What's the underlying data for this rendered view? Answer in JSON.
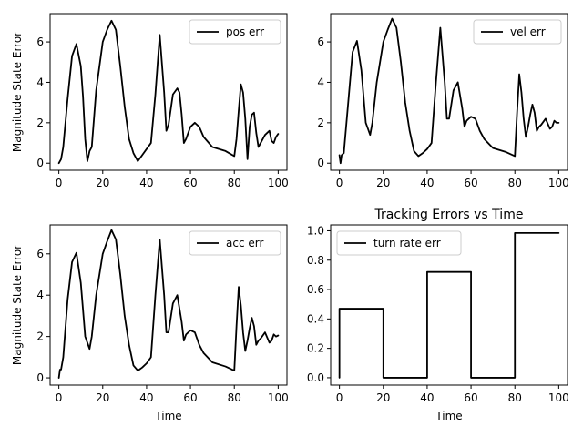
{
  "chart_data": [
    {
      "type": "line",
      "ylabel": "Magnitude State Error",
      "xlabel": "",
      "title": "",
      "xlim": [
        -4,
        104
      ],
      "ylim": [
        -0.35,
        7.4
      ],
      "xticks": [
        0,
        20,
        40,
        60,
        80,
        100
      ],
      "yticks": [
        0,
        2,
        4,
        6
      ],
      "legend": "top-right",
      "series": [
        {
          "name": "pos err",
          "color": "#000000",
          "x": [
            0,
            1,
            2,
            4,
            6,
            8,
            10,
            11,
            12,
            13,
            14,
            15,
            17,
            20,
            22,
            24,
            26,
            28,
            30,
            32,
            34,
            36,
            38,
            40,
            42,
            44,
            46,
            48,
            49,
            50,
            52,
            54,
            55,
            56,
            57,
            58,
            60,
            62,
            64,
            66,
            70,
            76,
            80,
            81,
            82,
            83,
            84,
            85,
            86,
            87,
            88,
            89,
            90,
            91,
            92,
            94,
            96,
            97,
            98,
            99,
            100
          ],
          "y": [
            0,
            0.2,
            0.8,
            3.2,
            5.3,
            5.9,
            4.8,
            3.3,
            1.2,
            0.1,
            0.6,
            0.8,
            3.6,
            6,
            6.6,
            7.05,
            6.6,
            4.8,
            2.8,
            1.2,
            0.5,
            0.1,
            0.4,
            0.7,
            1,
            3.4,
            6.35,
            3.5,
            1.6,
            1.9,
            3.4,
            3.7,
            3.5,
            2.4,
            1,
            1.2,
            1.8,
            2,
            1.8,
            1.3,
            0.8,
            0.6,
            0.35,
            1.2,
            2.6,
            3.9,
            3.5,
            2.2,
            0.2,
            1.8,
            2.4,
            2.5,
            1.5,
            0.8,
            1,
            1.4,
            1.6,
            1.1,
            1,
            1.3,
            1.45
          ]
        }
      ]
    },
    {
      "type": "line",
      "ylabel": "",
      "xlabel": "",
      "title": "",
      "xlim": [
        -4,
        104
      ],
      "ylim": [
        -0.35,
        7.4
      ],
      "xticks": [
        0,
        20,
        40,
        60,
        80,
        100
      ],
      "yticks": [
        0,
        2,
        4,
        6
      ],
      "legend": "top-right",
      "series": [
        {
          "name": "vel err",
          "color": "#000000",
          "x": [
            0,
            0.5,
            1,
            2,
            4,
            6,
            8,
            10,
            12,
            13,
            14,
            15,
            17,
            20,
            22,
            24,
            26,
            28,
            30,
            32,
            34,
            36,
            38,
            40,
            42,
            44,
            46,
            48,
            49,
            50,
            52,
            54,
            56,
            57,
            58,
            60,
            62,
            64,
            66,
            70,
            76,
            80,
            81,
            82,
            83,
            84,
            85,
            86,
            87,
            88,
            89,
            90,
            91,
            92,
            94,
            96,
            97,
            98,
            99,
            100
          ],
          "y": [
            0.4,
            0,
            0.4,
            0.5,
            3,
            5.5,
            6.05,
            4.6,
            2,
            1.7,
            1.4,
            2,
            4,
            6,
            6.6,
            7.15,
            6.7,
            5,
            3,
            1.6,
            0.6,
            0.35,
            0.5,
            0.7,
            1,
            4,
            6.7,
            4,
            2.2,
            2.2,
            3.6,
            4,
            2.7,
            1.8,
            2.1,
            2.3,
            2.2,
            1.6,
            1.2,
            0.75,
            0.55,
            0.35,
            2.5,
            4.4,
            3.5,
            2.2,
            1.3,
            1.8,
            2.4,
            2.9,
            2.5,
            1.6,
            1.8,
            1.9,
            2.2,
            1.7,
            1.8,
            2.1,
            2,
            2
          ]
        }
      ]
    },
    {
      "type": "line",
      "ylabel": "Magnitude State Error",
      "xlabel": "Time",
      "title": "",
      "xlim": [
        -4,
        104
      ],
      "ylim": [
        -0.35,
        7.4
      ],
      "xticks": [
        0,
        20,
        40,
        60,
        80,
        100
      ],
      "yticks": [
        0,
        2,
        4,
        6
      ],
      "legend": "top-right",
      "series": [
        {
          "name": "acc err",
          "color": "#000000",
          "x": [
            0,
            0.5,
            1,
            2,
            4,
            6,
            8,
            10,
            12,
            13,
            14,
            15,
            17,
            20,
            22,
            24,
            26,
            28,
            30,
            32,
            34,
            36,
            38,
            40,
            42,
            44,
            46,
            48,
            49,
            50,
            52,
            54,
            56,
            57,
            58,
            60,
            62,
            64,
            66,
            70,
            76,
            80,
            81,
            82,
            83,
            84,
            85,
            86,
            87,
            88,
            89,
            90,
            91,
            92,
            94,
            96,
            97,
            98,
            99,
            100
          ],
          "y": [
            0,
            0.4,
            0.4,
            1,
            3.8,
            5.6,
            6.05,
            4.6,
            2,
            1.7,
            1.4,
            2,
            4,
            6,
            6.6,
            7.15,
            6.7,
            5,
            3,
            1.6,
            0.6,
            0.35,
            0.5,
            0.7,
            1,
            4,
            6.7,
            4,
            2.2,
            2.2,
            3.6,
            4,
            2.7,
            1.8,
            2.1,
            2.3,
            2.2,
            1.6,
            1.2,
            0.75,
            0.55,
            0.35,
            2.5,
            4.4,
            3.5,
            2.2,
            1.3,
            1.8,
            2.4,
            2.9,
            2.5,
            1.6,
            1.8,
            1.9,
            2.2,
            1.7,
            1.8,
            2.1,
            2,
            2.05
          ]
        }
      ]
    },
    {
      "type": "line",
      "ylabel": "",
      "xlabel": "Time",
      "title": "Tracking Errors vs Time",
      "xlim": [
        -4,
        104
      ],
      "ylim": [
        -0.05,
        1.04
      ],
      "xticks": [
        0,
        20,
        40,
        60,
        80,
        100
      ],
      "yticks": [
        0.0,
        0.2,
        0.4,
        0.6,
        0.8,
        1.0
      ],
      "ytick_labels": [
        "0.0",
        "0.2",
        "0.4",
        "0.6",
        "0.8",
        "1.0"
      ],
      "legend": "top-left",
      "series": [
        {
          "name": "turn rate err",
          "color": "#000000",
          "x": [
            0,
            0,
            20,
            20,
            40,
            40,
            60,
            60,
            80,
            80,
            100
          ],
          "y": [
            0,
            0.47,
            0.47,
            0,
            0,
            0.72,
            0.72,
            0,
            0,
            0.985,
            0.985
          ]
        }
      ]
    }
  ]
}
